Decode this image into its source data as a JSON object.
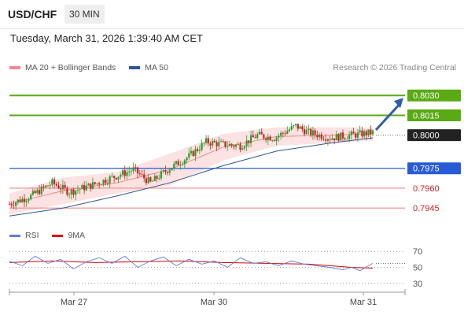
{
  "header": {
    "symbol": "USD/CHF",
    "timeframe": "30 MIN",
    "datetime": "Tuesday, March 31, 2026 1:39:40 AM CET"
  },
  "legend": {
    "ma20_label": "MA 20 + Bollinger Bands",
    "ma20_color": "#f08a8a",
    "ma50_label": "MA 50",
    "ma50_color": "#2f5597",
    "credit": "Research © 2026 Trading Central"
  },
  "rsi_legend": {
    "rsi_label": "RSI",
    "rsi_color": "#5b7fd6",
    "ma_label": "9MA",
    "ma_color": "#dd0000"
  },
  "colors": {
    "up_candle": "#2e9b2e",
    "down_candle": "#cc2222",
    "target_green": "#5aaa14",
    "pivot_blue": "#2a5bd7",
    "support_red": "#f08a8a",
    "current_black": "#222222",
    "arrow_blue": "#2f5fa8",
    "band_fill": "#fbd8d8"
  },
  "chart_data": {
    "type": "candlestick",
    "price_ylim": [
      0.7935,
      0.8045
    ],
    "x_tick_labels": [
      "Mar 27",
      "Mar 30",
      "Mar 31"
    ],
    "levels": [
      {
        "value": 0.803,
        "label": "0.8030",
        "kind": "target"
      },
      {
        "value": 0.8015,
        "label": "0.8015",
        "kind": "target"
      },
      {
        "value": 0.8,
        "label": "0.8000",
        "kind": "current"
      },
      {
        "value": 0.7975,
        "label": "0.7975",
        "kind": "pivot"
      },
      {
        "value": 0.796,
        "label": "0.7960",
        "kind": "support"
      },
      {
        "value": 0.7945,
        "label": "0.7945",
        "kind": "support"
      }
    ],
    "price_path": [
      [
        0,
        0.7948
      ],
      [
        10,
        0.7954
      ],
      [
        20,
        0.7964
      ],
      [
        28,
        0.7957
      ],
      [
        38,
        0.7962
      ],
      [
        48,
        0.7968
      ],
      [
        58,
        0.7974
      ],
      [
        66,
        0.7964
      ],
      [
        74,
        0.7974
      ],
      [
        84,
        0.7984
      ],
      [
        92,
        0.7995
      ],
      [
        100,
        0.7993
      ],
      [
        108,
        0.7992
      ],
      [
        116,
        0.8
      ],
      [
        124,
        0.7998
      ],
      [
        134,
        0.8007
      ],
      [
        140,
        0.8002
      ],
      [
        150,
        0.7998
      ],
      [
        160,
        0.8
      ],
      [
        170,
        0.8002
      ]
    ],
    "ma50_path": [
      [
        0,
        0.7939
      ],
      [
        25,
        0.7945
      ],
      [
        50,
        0.7954
      ],
      [
        75,
        0.7964
      ],
      [
        100,
        0.7977
      ],
      [
        125,
        0.7988
      ],
      [
        150,
        0.7994
      ],
      [
        170,
        0.7998
      ]
    ],
    "bollinger": {
      "upper": [
        [
          0,
          0.7956
        ],
        [
          25,
          0.7968
        ],
        [
          50,
          0.7972
        ],
        [
          75,
          0.7986
        ],
        [
          100,
          0.8001
        ],
        [
          125,
          0.8006
        ],
        [
          150,
          0.8006
        ],
        [
          170,
          0.8006
        ]
      ],
      "middle": [
        [
          0,
          0.7948
        ],
        [
          25,
          0.7958
        ],
        [
          50,
          0.7964
        ],
        [
          75,
          0.7974
        ],
        [
          100,
          0.7991
        ],
        [
          125,
          0.7999
        ],
        [
          150,
          0.8
        ],
        [
          170,
          0.8001
        ]
      ],
      "lower": [
        [
          0,
          0.794
        ],
        [
          25,
          0.7948
        ],
        [
          50,
          0.7956
        ],
        [
          75,
          0.7962
        ],
        [
          100,
          0.7981
        ],
        [
          125,
          0.7992
        ],
        [
          150,
          0.7994
        ],
        [
          170,
          0.7996
        ]
      ]
    },
    "rsi": {
      "ylim": [
        20,
        80
      ],
      "ticks": [
        70,
        50,
        30
      ],
      "rsi_path": [
        [
          0,
          58
        ],
        [
          6,
          52
        ],
        [
          12,
          64
        ],
        [
          18,
          55
        ],
        [
          24,
          60
        ],
        [
          30,
          48
        ],
        [
          36,
          57
        ],
        [
          42,
          62
        ],
        [
          48,
          55
        ],
        [
          54,
          64
        ],
        [
          60,
          50
        ],
        [
          66,
          58
        ],
        [
          72,
          63
        ],
        [
          78,
          52
        ],
        [
          84,
          60
        ],
        [
          90,
          54
        ],
        [
          96,
          58
        ],
        [
          102,
          50
        ],
        [
          108,
          62
        ],
        [
          114,
          55
        ],
        [
          120,
          57
        ],
        [
          126,
          52
        ],
        [
          132,
          58
        ],
        [
          138,
          54
        ],
        [
          144,
          52
        ],
        [
          150,
          50
        ],
        [
          156,
          47
        ],
        [
          160,
          50
        ],
        [
          164,
          46
        ],
        [
          170,
          55
        ]
      ],
      "ma_path": [
        [
          0,
          56
        ],
        [
          20,
          58
        ],
        [
          40,
          56
        ],
        [
          60,
          57
        ],
        [
          80,
          58
        ],
        [
          100,
          56
        ],
        [
          120,
          55
        ],
        [
          140,
          54
        ],
        [
          160,
          50
        ],
        [
          170,
          49
        ]
      ]
    }
  }
}
